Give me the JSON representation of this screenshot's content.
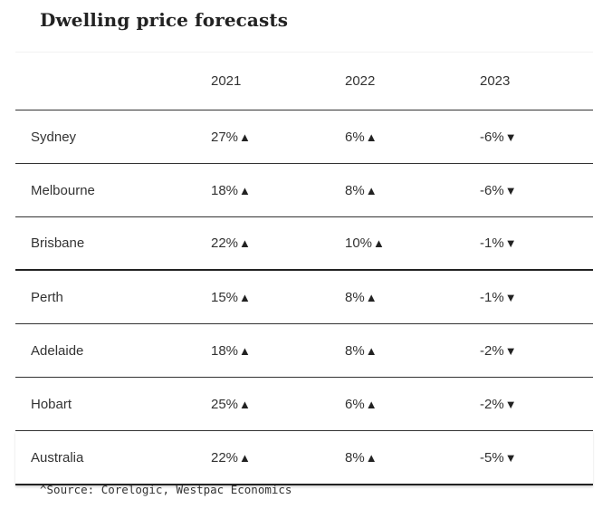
{
  "title": "Dwelling price forecasts",
  "columns": [
    "",
    "2021",
    "2022",
    "2023"
  ],
  "rows": [
    {
      "region": "Sydney",
      "cells": [
        {
          "value": "27%",
          "dir": "▲"
        },
        {
          "value": "6%",
          "dir": "▲"
        },
        {
          "value": "-6%",
          "dir": "▼"
        }
      ]
    },
    {
      "region": "Melbourne",
      "cells": [
        {
          "value": "18%",
          "dir": "▲"
        },
        {
          "value": "8%",
          "dir": "▲"
        },
        {
          "value": "-6%",
          "dir": "▼"
        }
      ]
    },
    {
      "region": "Brisbane",
      "cells": [
        {
          "value": "22%",
          "dir": "▲"
        },
        {
          "value": "10%",
          "dir": "▲"
        },
        {
          "value": "-1%",
          "dir": "▼"
        }
      ]
    },
    {
      "region": "Perth",
      "cells": [
        {
          "value": "15%",
          "dir": "▲"
        },
        {
          "value": "8%",
          "dir": "▲"
        },
        {
          "value": "-1%",
          "dir": "▼"
        }
      ]
    },
    {
      "region": "Adelaide",
      "cells": [
        {
          "value": "18%",
          "dir": "▲"
        },
        {
          "value": "8%",
          "dir": "▲"
        },
        {
          "value": "-2%",
          "dir": "▼"
        }
      ]
    },
    {
      "region": "Hobart",
      "cells": [
        {
          "value": "25%",
          "dir": "▲"
        },
        {
          "value": "6%",
          "dir": "▲"
        },
        {
          "value": "-2%",
          "dir": "▼"
        }
      ]
    },
    {
      "region": "Australia",
      "cells": [
        {
          "value": "22%",
          "dir": "▲"
        },
        {
          "value": "8%",
          "dir": "▲"
        },
        {
          "value": "-5%",
          "dir": "▼"
        }
      ]
    }
  ],
  "source": "^Source: Corelogic, Westpac Economics"
}
